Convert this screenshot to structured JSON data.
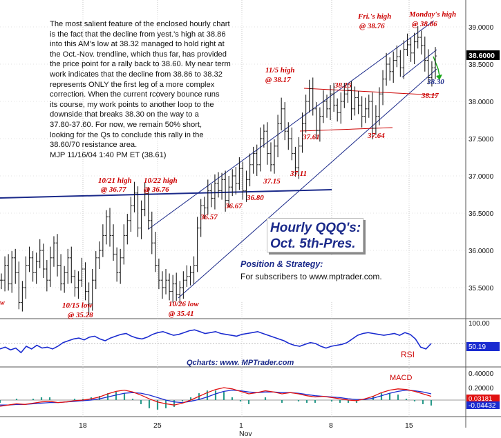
{
  "commentary": {
    "text": "The most salient feature of the enclosed hourly chart\nis the fact that the decline from yest.'s high at 38.86\ninto this AM's low at 38.32 managed to hold right at\nthe Oct.-Nov. trendline, which thus far, has provided\nthe price point for a rally back to 38.60. My near term\nwork indicates that the decline from 38.86 to 38.32\nrepresents ONLY the first leg of a more complex\ncorrection. When the current rcovery bounce runs\nits course, my work points to another loop to the\ndownside that breaks 38.30 on the way to a\n37.80-37.60. For now, we remain 50% short,\nlooking for the Qs to conclude this rally in the\n38.60/70 resistance area.\nMJP  11/16/04 1:40 PM ET (38.61)"
  },
  "title_box": {
    "line1": "Hourly QQQ's:",
    "line2": "Oct. 5th-Pres."
  },
  "position_box": {
    "heading": "Position & Strategy:",
    "text": "For subscribers to www.mptrader.com."
  },
  "source": "Qcharts: www. MPTrader.com",
  "colors": {
    "price_bars": "#1a1a1a",
    "trendlines": "#1b2a8a",
    "annotation_red": "#cc0000",
    "rsi_line": "#1a2bd0",
    "macd_red": "#e01010",
    "macd_blue": "#1a2bd0",
    "histogram": "#2a9a8a"
  },
  "chart_data": [
    {
      "type": "ohlc",
      "title": "Hourly QQQ's: Oct. 5th-Pres.",
      "y_axis_labels": [
        "39.0000",
        "38.5000",
        "38.0000",
        "37.5000",
        "37.0000",
        "36.5000",
        "36.0000",
        "35.5000"
      ],
      "ylim": [
        35.2,
        39.2
      ],
      "x_axis_labels": [
        "18",
        "25",
        "1",
        "8",
        "15"
      ],
      "x_sublabel": "Nov",
      "last_price_label": "38.6000",
      "close_series": [
        35.6,
        35.8,
        35.55,
        35.9,
        35.7,
        35.3,
        35.5,
        35.8,
        35.9,
        35.7,
        35.85,
        36.0,
        35.75,
        35.6,
        35.9,
        36.1,
        35.8,
        35.55,
        35.7,
        35.9,
        35.65,
        35.5,
        35.6,
        35.75,
        35.45,
        35.28,
        35.6,
        35.9,
        36.0,
        36.2,
        36.45,
        36.2,
        35.95,
        35.7,
        35.9,
        36.2,
        36.4,
        36.6,
        36.77,
        36.3,
        36.55,
        36.76,
        36.4,
        36.1,
        35.8,
        35.6,
        35.5,
        35.6,
        35.45,
        35.55,
        35.41,
        35.5,
        35.6,
        35.65,
        35.7,
        35.8,
        36.3,
        36.6,
        36.57,
        36.8,
        36.7,
        36.9,
        36.8,
        36.95,
        36.67,
        36.85,
        37.0,
        36.9,
        37.1,
        36.8,
        36.95,
        37.15,
        37.3,
        37.15,
        37.5,
        37.6,
        37.3,
        37.15,
        37.4,
        37.7,
        37.9,
        37.6,
        37.5,
        37.3,
        37.11,
        37.4,
        37.7,
        38.0,
        38.17,
        37.9,
        37.61,
        37.8,
        38.0,
        37.9,
        38.1,
        37.95,
        37.85,
        38.0,
        38.1,
        38.15,
        37.9,
        38.05,
        37.95,
        37.8,
        37.9,
        38.0,
        37.64,
        37.8,
        38.1,
        38.3,
        38.5,
        38.4,
        38.55,
        38.6,
        38.45,
        38.7,
        38.76,
        38.65,
        38.8,
        38.86,
        38.75,
        38.55,
        38.32,
        38.45,
        38.61
      ],
      "annotations": [
        {
          "text": "10/15 low",
          "sub": "@ 35.28"
        },
        {
          "text": "10/21 high",
          "sub": "@ 36.77"
        },
        {
          "text": "10/22 high",
          "sub": "@ 36.76"
        },
        {
          "text": "10/26 low",
          "sub": "@ 35.41"
        },
        {
          "text": "11/5 high",
          "sub": "@ 38.17"
        },
        {
          "text": "Fri.'s high",
          "sub": "@ 38.76"
        },
        {
          "text": "Monday's high",
          "sub": "@ 38.86"
        }
      ],
      "price_labels": [
        "36.57",
        "36.67",
        "36.80",
        "37.15",
        "37.11",
        "37.61",
        "37.64",
        "38.15",
        "38.17",
        "38.30"
      ],
      "edge_label": "w"
    },
    {
      "type": "line",
      "name": "RSI",
      "axis_label": "100.00",
      "current_value_label": "50.19",
      "ylim": [
        0,
        100
      ],
      "values": [
        38,
        42,
        36,
        40,
        30,
        44,
        38,
        46,
        40,
        42,
        38,
        44,
        52,
        56,
        60,
        62,
        58,
        64,
        66,
        60,
        56,
        62,
        66,
        70,
        72,
        66,
        62,
        60,
        64,
        70,
        74,
        76,
        72,
        68,
        70,
        74,
        78,
        80,
        76,
        72,
        74,
        76,
        72,
        70,
        68,
        66,
        70,
        72,
        74,
        76,
        72,
        68,
        64,
        60,
        56,
        50,
        46,
        44,
        48,
        52,
        50,
        44,
        40,
        44,
        46,
        48,
        52,
        60,
        68,
        72,
        74,
        72,
        70,
        68,
        70,
        72,
        68,
        74,
        70,
        60,
        42,
        38,
        50
      ]
    },
    {
      "type": "line",
      "name": "MACD",
      "axis_labels": [
        "0.40000",
        "0.20000"
      ],
      "value_labels": [
        "0.03181",
        "-0.04432"
      ],
      "ylim": [
        -0.12,
        0.4
      ],
      "series": [
        {
          "name": "MACD",
          "values": [
            -0.1,
            -0.08,
            -0.06,
            -0.07,
            -0.05,
            -0.03,
            -0.02,
            -0.04,
            -0.03,
            -0.01,
            0.0,
            0.02,
            0.05,
            0.1,
            0.14,
            0.16,
            0.13,
            0.08,
            0.02,
            -0.03,
            -0.06,
            -0.08,
            -0.05,
            0.0,
            0.06,
            0.12,
            0.17,
            0.2,
            0.18,
            0.14,
            0.1,
            0.12,
            0.15,
            0.13,
            0.1,
            0.12,
            0.1,
            0.07,
            0.05,
            0.06,
            0.04,
            0.02,
            0.0,
            -0.01,
            0.02,
            0.06,
            0.12,
            0.16,
            0.18,
            0.17,
            0.14,
            0.1,
            0.06
          ]
        },
        {
          "name": "Signal",
          "values": [
            -0.08,
            -0.08,
            -0.07,
            -0.07,
            -0.06,
            -0.05,
            -0.04,
            -0.04,
            -0.03,
            -0.02,
            -0.01,
            0.0,
            0.02,
            0.05,
            0.08,
            0.11,
            0.12,
            0.11,
            0.08,
            0.04,
            0.0,
            -0.03,
            -0.04,
            -0.02,
            0.01,
            0.05,
            0.1,
            0.14,
            0.16,
            0.15,
            0.13,
            0.12,
            0.13,
            0.13,
            0.12,
            0.12,
            0.11,
            0.09,
            0.07,
            0.06,
            0.05,
            0.04,
            0.02,
            0.01,
            0.01,
            0.03,
            0.07,
            0.11,
            0.14,
            0.16,
            0.15,
            0.13,
            0.1
          ]
        }
      ]
    }
  ]
}
